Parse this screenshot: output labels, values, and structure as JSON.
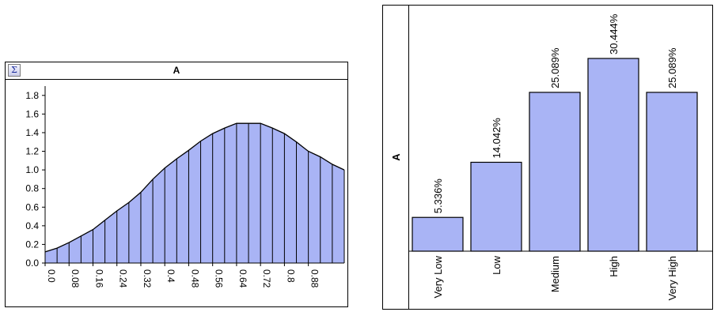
{
  "left_panel": {
    "title": "A",
    "sigma_label": "Σ"
  },
  "right_panel": {
    "title": "A"
  },
  "colors": {
    "fill": "#a9b4f5",
    "stroke": "#000000"
  },
  "chart_data": [
    {
      "type": "area",
      "title": "A",
      "xlabel": "",
      "ylabel": "",
      "x_ticks": [
        "0.0",
        "0.08",
        "0.16",
        "0.24",
        "0.32",
        "0.4",
        "0.48",
        "0.56",
        "0.64",
        "0.72",
        "0.8",
        "0.88"
      ],
      "y_ticks": [
        "0.0",
        "0.2",
        "0.4",
        "0.6",
        "0.8",
        "1.0",
        "1.2",
        "1.4",
        "1.6",
        "1.8"
      ],
      "xlim": [
        0,
        1.0
      ],
      "ylim": [
        0,
        1.9
      ],
      "x": [
        0.0,
        0.04,
        0.08,
        0.12,
        0.16,
        0.2,
        0.24,
        0.28,
        0.32,
        0.36,
        0.4,
        0.44,
        0.48,
        0.52,
        0.56,
        0.6,
        0.64,
        0.68,
        0.72,
        0.76,
        0.8,
        0.84,
        0.88,
        0.92,
        0.96,
        1.0
      ],
      "y": [
        0.12,
        0.16,
        0.22,
        0.29,
        0.36,
        0.46,
        0.56,
        0.65,
        0.76,
        0.9,
        1.02,
        1.12,
        1.21,
        1.31,
        1.39,
        1.45,
        1.5,
        1.5,
        1.5,
        1.45,
        1.39,
        1.3,
        1.2,
        1.14,
        1.06,
        1.0
      ]
    },
    {
      "type": "bar",
      "title": "A",
      "categories": [
        "Very Low",
        "Low",
        "Medium",
        "High",
        "Very High"
      ],
      "values": [
        5.336,
        14.042,
        25.089,
        30.444,
        25.089
      ],
      "value_labels": [
        "5.336%",
        "14.042%",
        "25.089%",
        "30.444%",
        "25.089%"
      ],
      "ylim": [
        0,
        30.444
      ]
    }
  ]
}
